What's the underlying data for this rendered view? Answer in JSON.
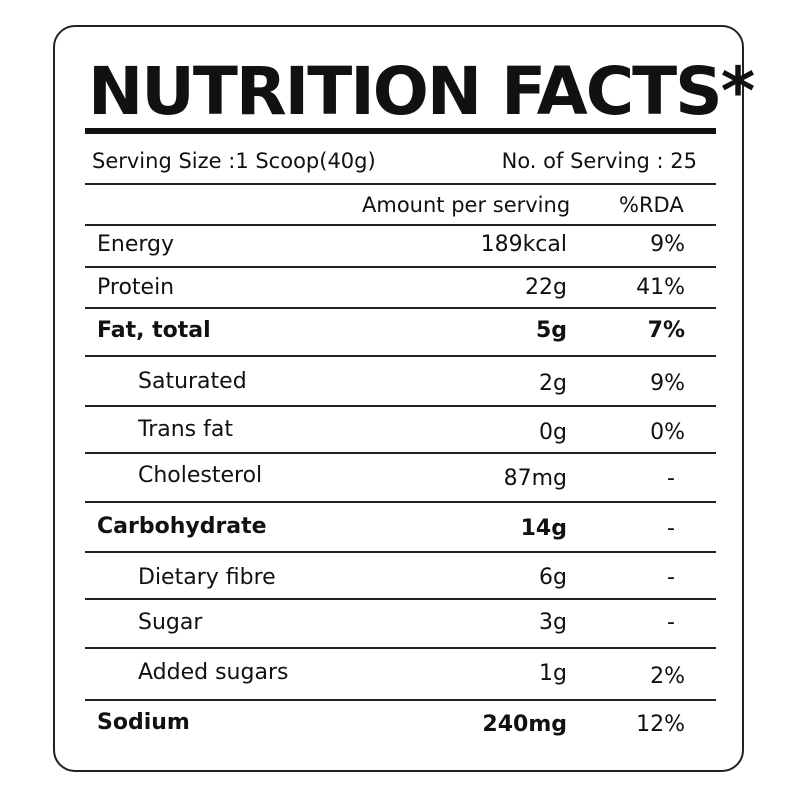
{
  "title": "NUTRITION FACTS*",
  "serving": {
    "size": "Serving Size :1 Scoop(40g)",
    "count": "No. of Serving : 25"
  },
  "columns": {
    "amount": "Amount per serving",
    "rda": "%RDA"
  },
  "rows": [
    {
      "label": "Energy",
      "amount": "189kcal",
      "rda": "9%"
    },
    {
      "label": "Protein",
      "amount": "22g",
      "rda": "41%"
    },
    {
      "label": "Fat, total",
      "amount": "5g",
      "rda": "7%"
    },
    {
      "label": "Saturated",
      "amount": "2g",
      "rda": "9%"
    },
    {
      "label": "Trans fat",
      "amount": "0g",
      "rda": "0%"
    },
    {
      "label": "Cholesterol",
      "amount": "87mg",
      "rda": "-"
    },
    {
      "label": "Carbohydrate",
      "amount": "14g",
      "rda": "-"
    },
    {
      "label": "Dietary fibre",
      "amount": "6g",
      "rda": "-"
    },
    {
      "label": "Sugar",
      "amount": "3g",
      "rda": "-"
    },
    {
      "label": "Added sugars",
      "amount": "1g",
      "rda": "2%"
    },
    {
      "label": "Sodium",
      "amount": "240mg",
      "rda": "12%"
    }
  ]
}
